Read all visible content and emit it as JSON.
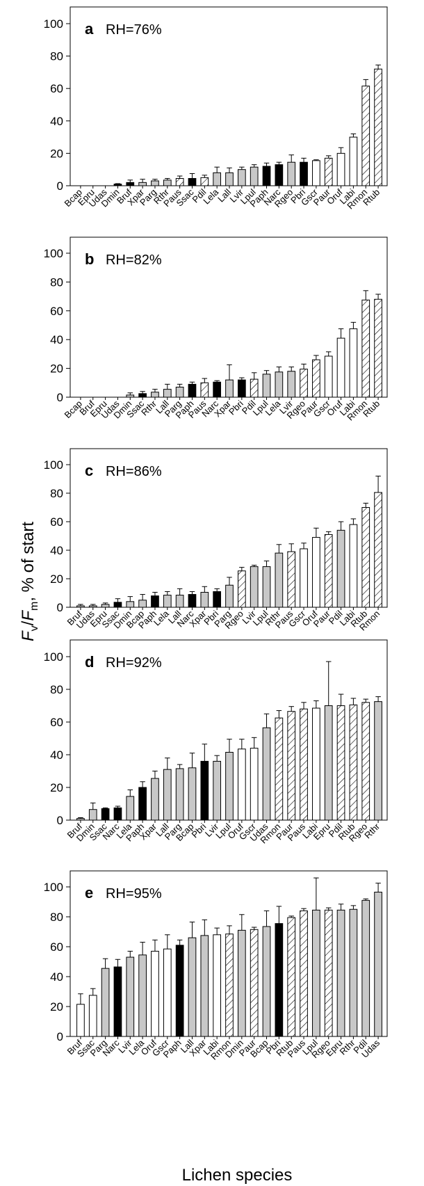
{
  "figure": {
    "ylabel_parts": [
      "F",
      "v",
      "/",
      "F",
      "m",
      ", % of start"
    ],
    "xlabel": "Lichen species"
  },
  "colors": {
    "black": "#000000",
    "gray": "#c8c8c8",
    "white": "#ffffff",
    "hatched": "#ffffff"
  },
  "chart_data": [
    {
      "type": "bar",
      "panel": "a",
      "title": "RH=76%",
      "ylim": [
        0,
        100
      ],
      "yticks": [
        0,
        20,
        40,
        60,
        80,
        100
      ],
      "categories": [
        "Bcap",
        "Epru",
        "Udas",
        "Dmin",
        "Bruf",
        "Xpar",
        "Parg",
        "Rthr",
        "Paus",
        "Ssac",
        "Pdil",
        "Lela",
        "Lall",
        "Lvir",
        "Lpul",
        "Paph",
        "Narc",
        "Rgeo",
        "Pbri",
        "Gscr",
        "Paur",
        "Oruf",
        "Labi",
        "Rmon",
        "Rtub"
      ],
      "values": [
        0,
        0,
        0,
        1,
        2,
        2,
        3,
        3.5,
        4.5,
        4.5,
        5,
        8,
        8,
        10,
        11.5,
        12,
        13,
        14.5,
        14.5,
        15.5,
        17,
        20,
        30,
        61.5,
        72
      ],
      "errors": [
        0,
        0,
        0,
        0.3,
        1.5,
        2,
        1,
        1,
        1.5,
        3,
        1.5,
        3.5,
        3,
        1.5,
        1.5,
        2,
        1.5,
        4.5,
        2.5,
        0.5,
        1.5,
        3.5,
        2,
        4,
        2.5
      ],
      "fills": [
        "gray",
        "gray",
        "gray",
        "black",
        "black",
        "gray",
        "gray",
        "gray",
        "hatched",
        "black",
        "hatched",
        "gray",
        "gray",
        "gray",
        "gray",
        "black",
        "black",
        "gray",
        "black",
        "white",
        "hatched",
        "white",
        "white",
        "hatched",
        "hatched"
      ]
    },
    {
      "type": "bar",
      "panel": "b",
      "title": "RH=82%",
      "ylim": [
        0,
        100
      ],
      "yticks": [
        0,
        20,
        40,
        60,
        80,
        100
      ],
      "categories": [
        "Bcap",
        "Bruf",
        "Epru",
        "Udas",
        "Dmin",
        "Ssac",
        "Rthr",
        "Lall",
        "Parg",
        "Paph",
        "Paus",
        "Narc",
        "Xpar",
        "Pbri",
        "Pdil",
        "Lpul",
        "Lela",
        "Lvir",
        "Rgeo",
        "Paur",
        "Gscr",
        "Oruf",
        "Labi",
        "Rmon",
        "Rtub"
      ],
      "values": [
        0,
        0,
        0,
        0,
        1.5,
        2.5,
        3.5,
        5.5,
        7,
        9,
        10,
        10.5,
        12,
        12,
        12.5,
        16,
        17.5,
        18,
        19.5,
        26,
        28.5,
        41,
        47.5,
        67.5,
        68
      ],
      "errors": [
        0,
        0,
        0,
        0,
        1.5,
        1.5,
        2,
        3.5,
        2,
        1.5,
        3,
        1,
        10.5,
        1.5,
        4.5,
        2.5,
        3.5,
        3,
        3.5,
        3,
        3,
        6.5,
        4.5,
        6.5,
        3.5
      ],
      "fills": [
        "gray",
        "gray",
        "gray",
        "gray",
        "gray",
        "black",
        "gray",
        "gray",
        "gray",
        "black",
        "hatched",
        "black",
        "gray",
        "black",
        "hatched",
        "gray",
        "gray",
        "gray",
        "hatched",
        "hatched",
        "white",
        "white",
        "white",
        "hatched",
        "hatched"
      ]
    },
    {
      "type": "bar",
      "panel": "c",
      "title": "RH=86%",
      "ylim": [
        0,
        110
      ],
      "yticks": [
        0,
        20,
        40,
        60,
        80,
        100
      ],
      "categories": [
        "Bruf",
        "Udas",
        "Epru",
        "Ssac",
        "Dmin",
        "Bcap",
        "Paph",
        "Lela",
        "Lall",
        "Narc",
        "Xpar",
        "Pbri",
        "Parg",
        "Rgeo",
        "Lvir",
        "Lpul",
        "Rthr",
        "Paus",
        "Gscr",
        "Oruf",
        "Paur",
        "Pdil",
        "Labi",
        "Rtub",
        "Rmon"
      ],
      "values": [
        1,
        1,
        2,
        3.5,
        4,
        5,
        8,
        8.5,
        8.5,
        9,
        10.5,
        11,
        15.5,
        25.5,
        28.5,
        28.5,
        38,
        39,
        41,
        49,
        51,
        54,
        58,
        70,
        80.5
      ],
      "errors": [
        1,
        1,
        1,
        2.5,
        3.5,
        4,
        2.5,
        2.5,
        4.5,
        2,
        4,
        2,
        5.5,
        2.5,
        1,
        4,
        6,
        5.5,
        4,
        6.5,
        2,
        6,
        4,
        3,
        11.5
      ],
      "fills": [
        "gray",
        "gray",
        "gray",
        "black",
        "gray",
        "gray",
        "black",
        "gray",
        "gray",
        "black",
        "gray",
        "black",
        "gray",
        "hatched",
        "gray",
        "gray",
        "gray",
        "hatched",
        "white",
        "white",
        "hatched",
        "gray",
        "white",
        "hatched",
        "hatched"
      ]
    },
    {
      "type": "bar",
      "panel": "d",
      "title": "RH=92%",
      "ylim": [
        0,
        110
      ],
      "yticks": [
        0,
        20,
        40,
        60,
        80,
        100
      ],
      "categories": [
        "Bruf",
        "Dmin",
        "Ssac",
        "Narc",
        "Lela",
        "Paph",
        "Xpar",
        "Lall",
        "Parg",
        "Bcap",
        "Pbri",
        "Lvir",
        "Lpul",
        "Oruf",
        "Gscr",
        "Udas",
        "Rmon",
        "Paur",
        "Paus",
        "Labi",
        "Epru",
        "Pdil",
        "Rtub",
        "Rgeo",
        "Rthr"
      ],
      "values": [
        1,
        6.5,
        7,
        7.5,
        14.5,
        20,
        25.5,
        31,
        31.5,
        32,
        36,
        36,
        41.5,
        43.5,
        44,
        56.5,
        62.5,
        66.5,
        68,
        68.5,
        70,
        70,
        70.5,
        72,
        72.5
      ],
      "errors": [
        0.5,
        4,
        0.5,
        1,
        4,
        3.5,
        4.5,
        7,
        2.5,
        9,
        10.5,
        3.5,
        8,
        6,
        6.5,
        8.5,
        4.5,
        3,
        4,
        4.5,
        27,
        7,
        4,
        2,
        3
      ],
      "fills": [
        "gray",
        "gray",
        "black",
        "black",
        "gray",
        "black",
        "gray",
        "gray",
        "gray",
        "gray",
        "black",
        "gray",
        "gray",
        "white",
        "white",
        "gray",
        "hatched",
        "hatched",
        "hatched",
        "white",
        "gray",
        "hatched",
        "hatched",
        "hatched",
        "gray"
      ]
    },
    {
      "type": "bar",
      "panel": "e",
      "title": "RH=95%",
      "ylim": [
        0,
        110
      ],
      "yticks": [
        0,
        20,
        40,
        60,
        80,
        100
      ],
      "categories": [
        "Bruf",
        "Ssac",
        "Parg",
        "Narc",
        "Lvir",
        "Lela",
        "Oruf",
        "Gscr",
        "Paph",
        "Lall",
        "Xpar",
        "Labi",
        "Rmon",
        "Dmin",
        "Paur",
        "Bcap",
        "Pbri",
        "Rtub",
        "Paus",
        "Lpul",
        "Rgeo",
        "Epru",
        "Rthr",
        "Pdil",
        "Udas"
      ],
      "values": [
        21.5,
        27.5,
        45.5,
        46.5,
        53,
        54.5,
        57,
        58.5,
        61,
        66,
        67.5,
        68,
        68.5,
        71,
        71.5,
        73.5,
        75.5,
        79.5,
        84,
        84.5,
        84.5,
        84.5,
        85,
        91,
        96.5
      ],
      "errors": [
        7,
        4.5,
        6.5,
        5,
        4,
        8.5,
        7.5,
        9.5,
        3.5,
        10.5,
        10.5,
        4.5,
        5.5,
        10.5,
        1.5,
        10.5,
        11.5,
        1,
        1.5,
        21.5,
        1.5,
        4,
        2.5,
        1,
        6
      ],
      "fills": [
        "white",
        "white",
        "gray",
        "black",
        "gray",
        "gray",
        "white",
        "white",
        "black",
        "gray",
        "gray",
        "white",
        "hatched",
        "gray",
        "hatched",
        "gray",
        "black",
        "hatched",
        "hatched",
        "gray",
        "hatched",
        "gray",
        "gray",
        "gray",
        "gray"
      ]
    }
  ]
}
